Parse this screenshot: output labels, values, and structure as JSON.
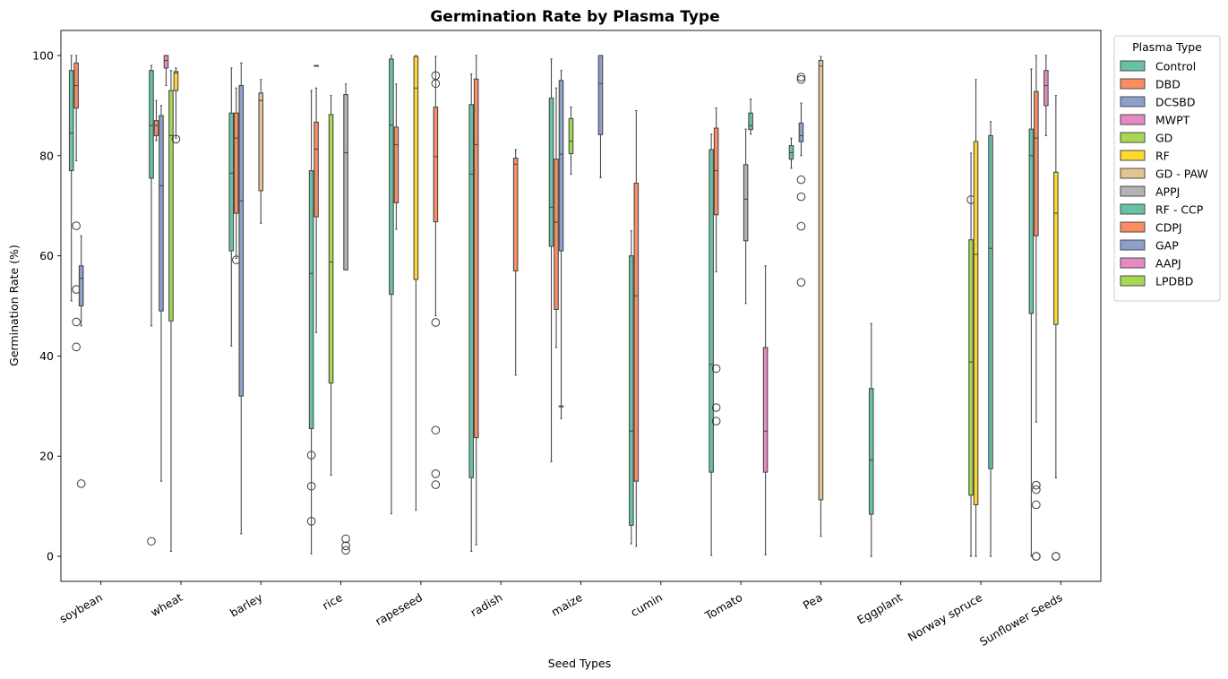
{
  "chart_data": {
    "type": "box",
    "title": "Germination Rate by Plasma Type",
    "xlabel": "Seed Types",
    "ylabel": "Germination Rate (%)",
    "ylim": [
      -5,
      105
    ],
    "yticks": [
      0,
      20,
      40,
      60,
      80,
      100
    ],
    "grid": false,
    "legend": {
      "title": "Plasma Type",
      "placement": "outside-top-right"
    },
    "categories": [
      "soybean",
      "wheat",
      "barley",
      "rice",
      "rapeseed",
      "radish",
      "maize",
      "cumin",
      "Tomato",
      "Pea",
      "Eggplant",
      "Norway spruce",
      "Sunflower Seeds"
    ],
    "series": [
      {
        "name": "Control",
        "color": "#66c2a5"
      },
      {
        "name": "DBD",
        "color": "#fc8d62"
      },
      {
        "name": "DCSBD",
        "color": "#8da0cb"
      },
      {
        "name": "MWPT",
        "color": "#e78ac3"
      },
      {
        "name": "GD",
        "color": "#a6d854"
      },
      {
        "name": "RF",
        "color": "#ffd92f"
      },
      {
        "name": "GD - PAW",
        "color": "#e5c494"
      },
      {
        "name": "APPJ",
        "color": "#b3b3b3"
      },
      {
        "name": "RF - CCP",
        "color": "#66c2a5"
      },
      {
        "name": "CDPJ",
        "color": "#fc8d62"
      },
      {
        "name": "GAP",
        "color": "#8da0cb"
      },
      {
        "name": "AAPJ",
        "color": "#e78ac3"
      },
      {
        "name": "LPDBD",
        "color": "#a6d854"
      }
    ],
    "boxes": [
      {
        "category": 0,
        "series": 0,
        "whislo": 51,
        "q1": 77,
        "med": 84.5,
        "q3": 97,
        "whishi": 100,
        "fliers": []
      },
      {
        "category": 0,
        "series": 1,
        "whislo": 79,
        "q1": 89.5,
        "med": 94,
        "q3": 98.5,
        "whishi": 100,
        "fliers": [
          66,
          53.3,
          46.8,
          41.8
        ]
      },
      {
        "category": 0,
        "series": 2,
        "whislo": 46,
        "q1": 50,
        "med": 55.5,
        "q3": 58,
        "whishi": 64,
        "fliers": [
          14.5
        ]
      },
      {
        "category": 1,
        "series": 0,
        "whislo": 46,
        "q1": 75.5,
        "med": 86,
        "q3": 97,
        "whishi": 98,
        "fliers": [
          3
        ]
      },
      {
        "category": 1,
        "series": 1,
        "whislo": 83,
        "q1": 84,
        "med": 86,
        "q3": 87,
        "whishi": 91,
        "fliers": []
      },
      {
        "category": 1,
        "series": 2,
        "whislo": 15,
        "q1": 49,
        "med": 74,
        "q3": 88,
        "whishi": 90,
        "fliers": []
      },
      {
        "category": 1,
        "series": 3,
        "whislo": 94,
        "q1": 97.5,
        "med": 99,
        "q3": 100,
        "whishi": 100,
        "fliers": []
      },
      {
        "category": 1,
        "series": 4,
        "whislo": 1,
        "q1": 47,
        "med": 84,
        "q3": 93,
        "whishi": 97,
        "fliers": []
      },
      {
        "category": 1,
        "series": 5,
        "whislo": 83.5,
        "q1": 93,
        "med": 96.5,
        "q3": 96.8,
        "whishi": 97.5,
        "fliers": [
          83.3
        ]
      },
      {
        "category": 2,
        "series": 0,
        "whislo": 42,
        "q1": 61,
        "med": 76.5,
        "q3": 88.5,
        "whishi": 97.5,
        "fliers": []
      },
      {
        "category": 2,
        "series": 1,
        "whislo": 59.5,
        "q1": 68.5,
        "med": 83.5,
        "q3": 88.5,
        "whishi": 93.5,
        "fliers": [
          59.2
        ]
      },
      {
        "category": 2,
        "series": 2,
        "whislo": 4.5,
        "q1": 32,
        "med": 71,
        "q3": 94,
        "whishi": 98.5,
        "fliers": []
      },
      {
        "category": 2,
        "series": 6,
        "whislo": 66.5,
        "q1": 73,
        "med": 91,
        "q3": 92.5,
        "whishi": 95.2,
        "fliers": []
      },
      {
        "category": 3,
        "series": 0,
        "whislo": 0.5,
        "q1": 25.5,
        "med": 56.5,
        "q3": 77,
        "whishi": 93,
        "fliers": [
          20.2,
          14,
          7
        ]
      },
      {
        "category": 3,
        "series": 1,
        "whislo": 44.7,
        "q1": 67.8,
        "med": 81.3,
        "q3": 86.7,
        "whishi": 93.5,
        "fliers": []
      },
      {
        "category": 3,
        "series": 1,
        "whislo": 98,
        "q1": 98,
        "med": 98,
        "q3": 98,
        "whishi": 98,
        "fliers": []
      },
      {
        "category": 3,
        "series": 4,
        "whislo": 16.2,
        "q1": 34.6,
        "med": 58.8,
        "q3": 88.2,
        "whishi": 92,
        "fliers": []
      },
      {
        "category": 3,
        "series": 7,
        "whislo": 57.2,
        "q1": 57.2,
        "med": 80.6,
        "q3": 92.2,
        "whishi": 94.3,
        "fliers": [
          3.5,
          2.1,
          1.2
        ]
      },
      {
        "category": 4,
        "series": 0,
        "whislo": 8.5,
        "q1": 52.3,
        "med": 86.1,
        "q3": 99.3,
        "whishi": 100,
        "fliers": []
      },
      {
        "category": 4,
        "series": 1,
        "whislo": 65.3,
        "q1": 70.6,
        "med": 82.2,
        "q3": 85.7,
        "whishi": 94.3,
        "fliers": []
      },
      {
        "category": 4,
        "series": 5,
        "whislo": 9.2,
        "q1": 55.3,
        "med": 93.5,
        "q3": 99.8,
        "whishi": 100,
        "fliers": []
      },
      {
        "category": 4,
        "series": 9,
        "whislo": 48,
        "q1": 66.8,
        "med": 79.8,
        "q3": 89.7,
        "whishi": 99.8,
        "fliers": [
          96,
          94.4,
          46.7,
          25.2,
          16.5,
          14.3
        ]
      },
      {
        "category": 5,
        "series": 0,
        "whislo": 1,
        "q1": 15.7,
        "med": 76.3,
        "q3": 90.2,
        "whishi": 96.3,
        "fliers": []
      },
      {
        "category": 5,
        "series": 1,
        "whislo": 2.3,
        "q1": 23.7,
        "med": 82.2,
        "q3": 95.3,
        "whishi": 100,
        "fliers": []
      },
      {
        "category": 5,
        "series": 9,
        "whislo": 36.2,
        "q1": 57,
        "med": 78.3,
        "q3": 79.5,
        "whishi": 81.2,
        "fliers": []
      },
      {
        "category": 6,
        "series": 0,
        "whislo": 18.9,
        "q1": 61.9,
        "med": 69.7,
        "q3": 91.5,
        "whishi": 99.3,
        "fliers": []
      },
      {
        "category": 6,
        "series": 1,
        "whislo": 41.7,
        "q1": 49.3,
        "med": 66.7,
        "q3": 79.3,
        "whishi": 93.5,
        "fliers": []
      },
      {
        "category": 6,
        "series": 2,
        "whislo": 27.5,
        "q1": 61,
        "med": 80.3,
        "q3": 95,
        "whishi": 97,
        "fliers": []
      },
      {
        "category": 6,
        "series": 2,
        "whislo": 30,
        "q1": 30,
        "med": 30,
        "q3": 30,
        "whishi": 30,
        "fliers": []
      },
      {
        "category": 6,
        "series": 4,
        "whislo": 76.3,
        "q1": 80.4,
        "med": 82.9,
        "q3": 87.4,
        "whishi": 89.7,
        "fliers": []
      },
      {
        "category": 6,
        "series": 10,
        "whislo": 75.6,
        "q1": 84.2,
        "med": 94.4,
        "q3": 100,
        "whishi": 100,
        "fliers": []
      },
      {
        "category": 7,
        "series": 0,
        "whislo": 2.5,
        "q1": 6.2,
        "med": 25,
        "q3": 60,
        "whishi": 65,
        "fliers": []
      },
      {
        "category": 7,
        "series": 1,
        "whislo": 2,
        "q1": 15,
        "med": 52,
        "q3": 74.5,
        "whishi": 89,
        "fliers": []
      },
      {
        "category": 8,
        "series": 0,
        "whislo": 0.2,
        "q1": 16.8,
        "med": 38.3,
        "q3": 81.2,
        "whishi": 84.3,
        "fliers": []
      },
      {
        "category": 8,
        "series": 1,
        "whislo": 56.8,
        "q1": 68.2,
        "med": 77,
        "q3": 85.5,
        "whishi": 89.5,
        "fliers": [
          37.5,
          29.7,
          27
        ]
      },
      {
        "category": 8,
        "series": 7,
        "whislo": 50.5,
        "q1": 63,
        "med": 71.3,
        "q3": 78.2,
        "whishi": 85.3,
        "fliers": []
      },
      {
        "category": 8,
        "series": 8,
        "whislo": 84.3,
        "q1": 85.2,
        "med": 86,
        "q3": 88.5,
        "whishi": 91.3,
        "fliers": []
      },
      {
        "category": 8,
        "series": 11,
        "whislo": 0.3,
        "q1": 16.8,
        "med": 25,
        "q3": 41.7,
        "whishi": 58,
        "fliers": []
      },
      {
        "category": 9,
        "series": 0,
        "whislo": 77.5,
        "q1": 79.3,
        "med": 80.6,
        "q3": 82,
        "whishi": 83.5,
        "fliers": []
      },
      {
        "category": 9,
        "series": 2,
        "whislo": 80,
        "q1": 82.8,
        "med": 84,
        "q3": 86.5,
        "whishi": 90.5,
        "fliers": [
          95.7,
          95.2,
          75.2,
          71.8,
          65.9,
          54.7
        ]
      },
      {
        "category": 9,
        "series": 6,
        "whislo": 4,
        "q1": 11.3,
        "med": 97.9,
        "q3": 99,
        "whishi": 99.8,
        "fliers": []
      },
      {
        "category": 10,
        "series": 0,
        "whislo": 0,
        "q1": 8.4,
        "med": 19.2,
        "q3": 33.5,
        "whishi": 46.5,
        "fliers": []
      },
      {
        "category": 11,
        "series": 4,
        "whislo": 0,
        "q1": 12.2,
        "med": 38.8,
        "q3": 63.2,
        "whishi": 80.5,
        "fliers": [
          71.2
        ]
      },
      {
        "category": 11,
        "series": 8,
        "whislo": 0,
        "q1": 17.5,
        "med": 61.5,
        "q3": 84,
        "whishi": 86.8,
        "fliers": []
      },
      {
        "category": 11,
        "series": 5,
        "whislo": 0,
        "q1": 10.3,
        "med": 60.3,
        "q3": 82.8,
        "whishi": 95.2,
        "fliers": []
      },
      {
        "category": 12,
        "series": 0,
        "whislo": 0,
        "q1": 48.5,
        "med": 80,
        "q3": 85.3,
        "whishi": 97.3,
        "fliers": []
      },
      {
        "category": 12,
        "series": 1,
        "whislo": 26.8,
        "q1": 64,
        "med": 83.5,
        "q3": 92.8,
        "whishi": 100,
        "fliers": [
          14.2,
          13.3,
          10.3,
          0,
          0
        ]
      },
      {
        "category": 12,
        "series": 5,
        "whislo": 15.7,
        "q1": 46.3,
        "med": 68.5,
        "q3": 76.7,
        "whishi": 92,
        "fliers": [
          0,
          0
        ]
      },
      {
        "category": 12,
        "series": 3,
        "whislo": 84,
        "q1": 90,
        "med": 94,
        "q3": 97,
        "whishi": 100,
        "fliers": []
      }
    ]
  }
}
